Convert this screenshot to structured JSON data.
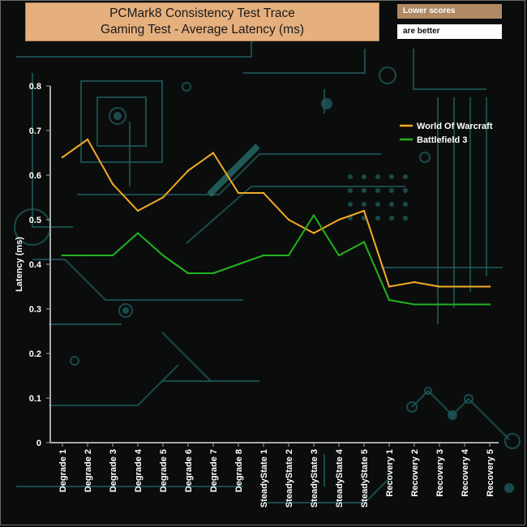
{
  "header": {
    "title_line1": "PCMark8 Consistency Test Trace",
    "title_line2": "Gaming Test -  Average Latency (ms)",
    "note_line1": "Lower scores",
    "note_line2": "are better"
  },
  "colors": {
    "series_1": "#f4aa22",
    "series_2": "#22b41e",
    "axis": "#a8a8a8",
    "decor": "#1f5a5a"
  },
  "chart_data": {
    "type": "line",
    "title": "PCMark8 Consistency Test Trace Gaming Test -  Average Latency (ms)",
    "xlabel": "",
    "ylabel": "Latency (ms)",
    "ylim": [
      0,
      0.8
    ],
    "yticks": [
      "0",
      "0.1",
      "0.2",
      "0.3",
      "0.4",
      "0.5",
      "0.6",
      "0.7",
      "0.8"
    ],
    "ytick_values": [
      0,
      0.1,
      0.2,
      0.3,
      0.4,
      0.5,
      0.6,
      0.7,
      0.8
    ],
    "grid": false,
    "legend_position": "top-right",
    "categories": [
      "Degrade 1",
      "Degrade 2",
      "Degrade 3",
      "Degrade 4",
      "Degrade 5",
      "Degrade 6",
      "Degrade 7",
      "Degrade 8",
      "SteadyState 1",
      "SteadyState 2",
      "SteadyState 3",
      "SteadyState 4",
      "SteadyState 5",
      "Recovery 1",
      "Recovery 2",
      "Recovery 3",
      "Recovery 4",
      "Recovery 5"
    ],
    "series": [
      {
        "name": "World Of Warcraft",
        "values": [
          0.64,
          0.68,
          0.58,
          0.52,
          0.55,
          0.61,
          0.65,
          0.56,
          0.56,
          0.5,
          0.47,
          0.5,
          0.52,
          0.35,
          0.36,
          0.35,
          0.35,
          0.35
        ]
      },
      {
        "name": "Battlefield 3",
        "values": [
          0.42,
          0.42,
          0.42,
          0.47,
          0.42,
          0.38,
          0.38,
          0.4,
          0.42,
          0.42,
          0.51,
          0.42,
          0.45,
          0.32,
          0.31,
          0.31,
          0.31,
          0.31
        ]
      }
    ]
  }
}
